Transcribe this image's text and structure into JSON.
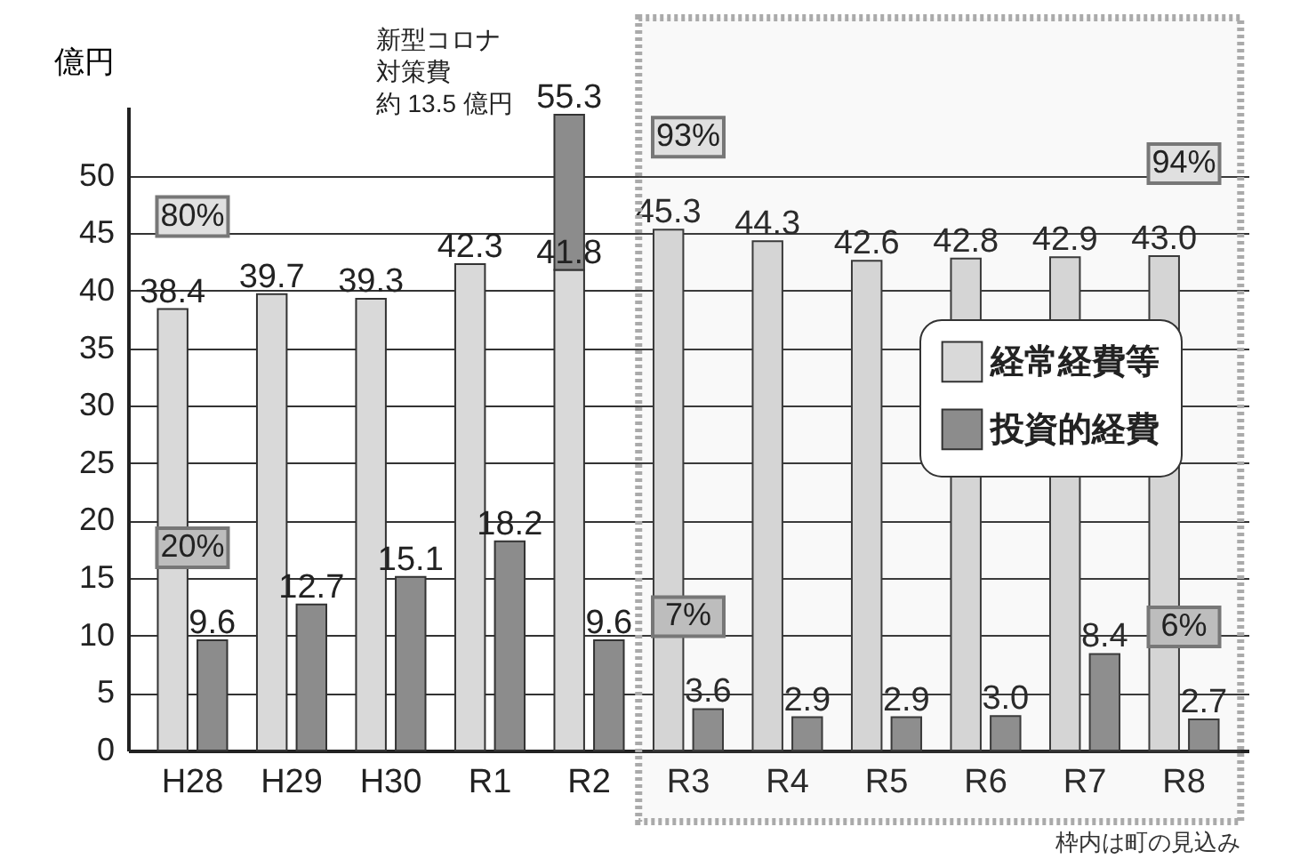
{
  "chart_data": {
    "type": "bar",
    "ylabel": "億円",
    "categories": [
      "H28",
      "H29",
      "H30",
      "R1",
      "R2",
      "R3",
      "R4",
      "R5",
      "R6",
      "R7",
      "R8"
    ],
    "series": [
      {
        "name": "経常経費等",
        "color": "#d9d9d9",
        "values": [
          38.4,
          39.7,
          39.3,
          42.3,
          41.8,
          45.3,
          44.3,
          42.6,
          42.8,
          42.9,
          43.0
        ],
        "value_labels": [
          "38.4",
          "39.7",
          "39.3",
          "42.3",
          "41.8",
          "45.3",
          "44.3",
          "42.6",
          "42.8",
          "42.9",
          "43.0"
        ]
      },
      {
        "name": "投資的経費",
        "color": "#8c8c8c",
        "values": [
          9.6,
          12.7,
          15.1,
          18.2,
          9.6,
          3.6,
          2.9,
          2.9,
          3.0,
          8.4,
          2.7
        ],
        "value_labels": [
          "9.6",
          "12.7",
          "15.1",
          "18.2",
          "9.6",
          "3.6",
          "2.9",
          "2.9",
          "3.0",
          "8.4",
          "2.7"
        ]
      },
      {
        "color": "#8c8c8c",
        "values": [
          null,
          null,
          null,
          null,
          13.5,
          null,
          null,
          null,
          null,
          null,
          null
        ],
        "base": [
          null,
          null,
          null,
          null,
          41.8,
          null,
          null,
          null,
          null,
          null,
          null
        ],
        "value_labels": [
          null,
          null,
          null,
          null,
          "55.3",
          null,
          null,
          null,
          null,
          null,
          null
        ]
      }
    ],
    "ylim": [
      0,
      56
    ],
    "yticks": [
      0,
      5,
      10,
      15,
      20,
      25,
      30,
      35,
      40,
      45,
      50
    ],
    "grid": "y",
    "legend": "right",
    "annotations": [
      {
        "text": "80%",
        "x": "H28",
        "y": 38.4
      },
      {
        "text": "20%",
        "x": "H28",
        "y": 9.6
      },
      {
        "text": "93%",
        "x": "R3",
        "y": 45.3
      },
      {
        "text": "7%",
        "x": "R3",
        "y": 3.6
      },
      {
        "text": "94%",
        "x": "R8",
        "y": 43.0
      },
      {
        "text": "6%",
        "x": "R8",
        "y": 2.7
      },
      "新型コロナ",
      "対策費",
      "約 13.5 億円"
    ],
    "bands": [
      {
        "axis": "x",
        "from": "R3",
        "to": "R8",
        "label": "枠内は町の見込み",
        "color": "#aaaaaa"
      }
    ]
  }
}
